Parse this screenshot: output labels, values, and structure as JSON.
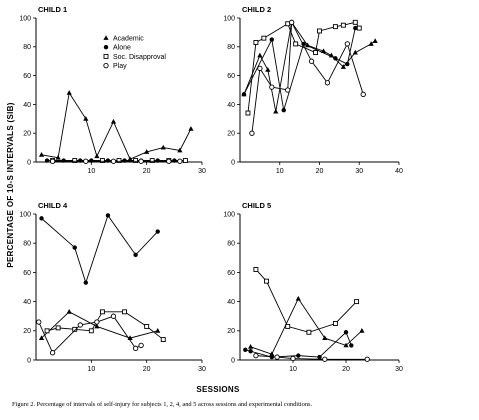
{
  "figure": {
    "y_axis_label": "PERCENTAGE OF 10-S INTERVALS (SIB)",
    "x_axis_label": "SESSIONS",
    "caption": "Figure 2.   Percentage of intervals of self-injury for subjects 1, 2, 4, and 5 across sessions and experimental conditions."
  },
  "legend": [
    {
      "label": "Academic",
      "marker": "triangle-filled"
    },
    {
      "label": "Alone",
      "marker": "circle-filled"
    },
    {
      "label": "Soc. Disapproval",
      "marker": "square-open"
    },
    {
      "label": "Play",
      "marker": "circle-open"
    }
  ],
  "chart_data": [
    {
      "type": "line",
      "title": "CHILD 1",
      "xlim": [
        0,
        30
      ],
      "ylim": [
        0,
        100
      ],
      "xticks": [
        10,
        20,
        30
      ],
      "yticks": [
        0,
        20,
        40,
        60,
        80,
        100
      ],
      "series": [
        {
          "name": "Academic",
          "marker": "triangle-filled",
          "points": [
            [
              1,
              5
            ],
            [
              4,
              3
            ],
            [
              6,
              48
            ],
            [
              9,
              30
            ],
            [
              11,
              4
            ],
            [
              14,
              28
            ],
            [
              17,
              2
            ],
            [
              20,
              7
            ],
            [
              23,
              10
            ],
            [
              26,
              8
            ],
            [
              28,
              23
            ]
          ]
        },
        {
          "name": "Alone",
          "marker": "circle-filled",
          "points": [
            [
              2,
              1
            ],
            [
              5,
              1
            ],
            [
              8,
              1
            ],
            [
              10,
              1
            ],
            [
              13,
              1
            ],
            [
              16,
              1
            ],
            [
              19,
              1
            ],
            [
              22,
              1
            ],
            [
              25,
              1
            ],
            [
              27,
              1
            ]
          ]
        },
        {
          "name": "Soc. Disapproval",
          "marker": "square-open",
          "points": [
            [
              3,
              1
            ],
            [
              7,
              1
            ],
            [
              12,
              1
            ],
            [
              15,
              1
            ],
            [
              18,
              1
            ],
            [
              21,
              1
            ],
            [
              24,
              1
            ],
            [
              27,
              1
            ]
          ]
        },
        {
          "name": "Play",
          "marker": "circle-open",
          "points": [
            [
              3,
              0.5
            ],
            [
              9,
              0.5
            ],
            [
              14,
              0.5
            ],
            [
              19,
              0.5
            ],
            [
              24,
              0.5
            ],
            [
              26,
              0.5
            ]
          ]
        }
      ]
    },
    {
      "type": "line",
      "title": "CHILD 2",
      "xlim": [
        0,
        40
      ],
      "ylim": [
        0,
        100
      ],
      "xticks": [
        10,
        20,
        30,
        40
      ],
      "yticks": [
        0,
        20,
        40,
        60,
        80,
        100
      ],
      "series": [
        {
          "name": "Academic",
          "marker": "triangle-filled",
          "points": [
            [
              1,
              47
            ],
            [
              5,
              74
            ],
            [
              7,
              64
            ],
            [
              9,
              35
            ],
            [
              13,
              97
            ],
            [
              17,
              81
            ],
            [
              21,
              77
            ],
            [
              23,
              74
            ],
            [
              26,
              66
            ],
            [
              29,
              76
            ],
            [
              33,
              82
            ],
            [
              34,
              84
            ]
          ]
        },
        {
          "name": "Alone",
          "marker": "circle-filled",
          "points": [
            [
              1,
              47
            ],
            [
              8,
              85
            ],
            [
              11,
              36
            ],
            [
              16,
              82
            ],
            [
              24,
              72
            ],
            [
              27,
              68
            ],
            [
              29,
              93
            ]
          ]
        },
        {
          "name": "Soc. Disapproval",
          "marker": "square-open",
          "points": [
            [
              2,
              34
            ],
            [
              4,
              83
            ],
            [
              6,
              86
            ],
            [
              12,
              96
            ],
            [
              14,
              82
            ],
            [
              19,
              76
            ],
            [
              20,
              91
            ],
            [
              24,
              94
            ],
            [
              26,
              95
            ],
            [
              29,
              97
            ],
            [
              30,
              93
            ]
          ]
        },
        {
          "name": "Play",
          "marker": "circle-open",
          "points": [
            [
              3,
              20
            ],
            [
              5,
              65
            ],
            [
              8,
              52
            ],
            [
              12,
              50
            ],
            [
              13,
              97
            ],
            [
              18,
              70
            ],
            [
              22,
              55
            ],
            [
              27,
              82
            ],
            [
              31,
              47
            ]
          ]
        }
      ]
    },
    {
      "type": "line",
      "title": "CHILD 4",
      "xlim": [
        0,
        30
      ],
      "ylim": [
        0,
        100
      ],
      "xticks": [
        10,
        20,
        30
      ],
      "yticks": [
        0,
        20,
        40,
        60,
        80,
        100
      ],
      "series": [
        {
          "name": "Academic",
          "marker": "triangle-filled",
          "points": [
            [
              1,
              15
            ],
            [
              6,
              33
            ],
            [
              11,
              23
            ],
            [
              17,
              15
            ],
            [
              22,
              20
            ]
          ]
        },
        {
          "name": "Alone",
          "marker": "circle-filled",
          "points": [
            [
              1,
              97
            ],
            [
              7,
              77
            ],
            [
              9,
              53
            ],
            [
              13,
              99
            ],
            [
              18,
              72
            ],
            [
              22,
              88
            ]
          ]
        },
        {
          "name": "Soc. Disapproval",
          "marker": "square-open",
          "points": [
            [
              2,
              20
            ],
            [
              4,
              22
            ],
            [
              7,
              21
            ],
            [
              10,
              20
            ],
            [
              12,
              33
            ],
            [
              16,
              33
            ],
            [
              20,
              23
            ],
            [
              23,
              14
            ]
          ]
        },
        {
          "name": "Play",
          "marker": "circle-open",
          "points": [
            [
              0.5,
              26
            ],
            [
              3,
              5
            ],
            [
              8,
              24
            ],
            [
              11,
              26
            ],
            [
              14,
              30
            ],
            [
              18,
              8
            ],
            [
              19,
              10
            ]
          ]
        }
      ]
    },
    {
      "type": "line",
      "title": "CHILD 5",
      "xlim": [
        0,
        30
      ],
      "ylim": [
        0,
        100
      ],
      "xticks": [
        10,
        20,
        30
      ],
      "yticks": [
        0,
        20,
        40,
        60,
        80,
        100
      ],
      "series": [
        {
          "name": "Academic",
          "marker": "triangle-filled",
          "points": [
            [
              2,
              9
            ],
            [
              6,
              4
            ],
            [
              11,
              42
            ],
            [
              16,
              15
            ],
            [
              20,
              10
            ],
            [
              23,
              20
            ]
          ]
        },
        {
          "name": "Alone",
          "marker": "circle-filled",
          "points": [
            [
              1,
              7
            ],
            [
              2,
              6
            ],
            [
              6,
              2
            ],
            [
              11,
              3
            ],
            [
              15,
              2
            ],
            [
              20,
              19
            ],
            [
              21,
              10
            ]
          ]
        },
        {
          "name": "Soc. Disapproval",
          "marker": "square-open",
          "points": [
            [
              3,
              62
            ],
            [
              5,
              54
            ],
            [
              9,
              23
            ],
            [
              13,
              19
            ],
            [
              18,
              25
            ],
            [
              22,
              40
            ]
          ]
        },
        {
          "name": "Play",
          "marker": "circle-open",
          "points": [
            [
              3,
              3
            ],
            [
              7,
              2
            ],
            [
              10,
              1
            ],
            [
              16,
              0.5
            ],
            [
              24,
              0.5
            ]
          ]
        }
      ]
    }
  ]
}
